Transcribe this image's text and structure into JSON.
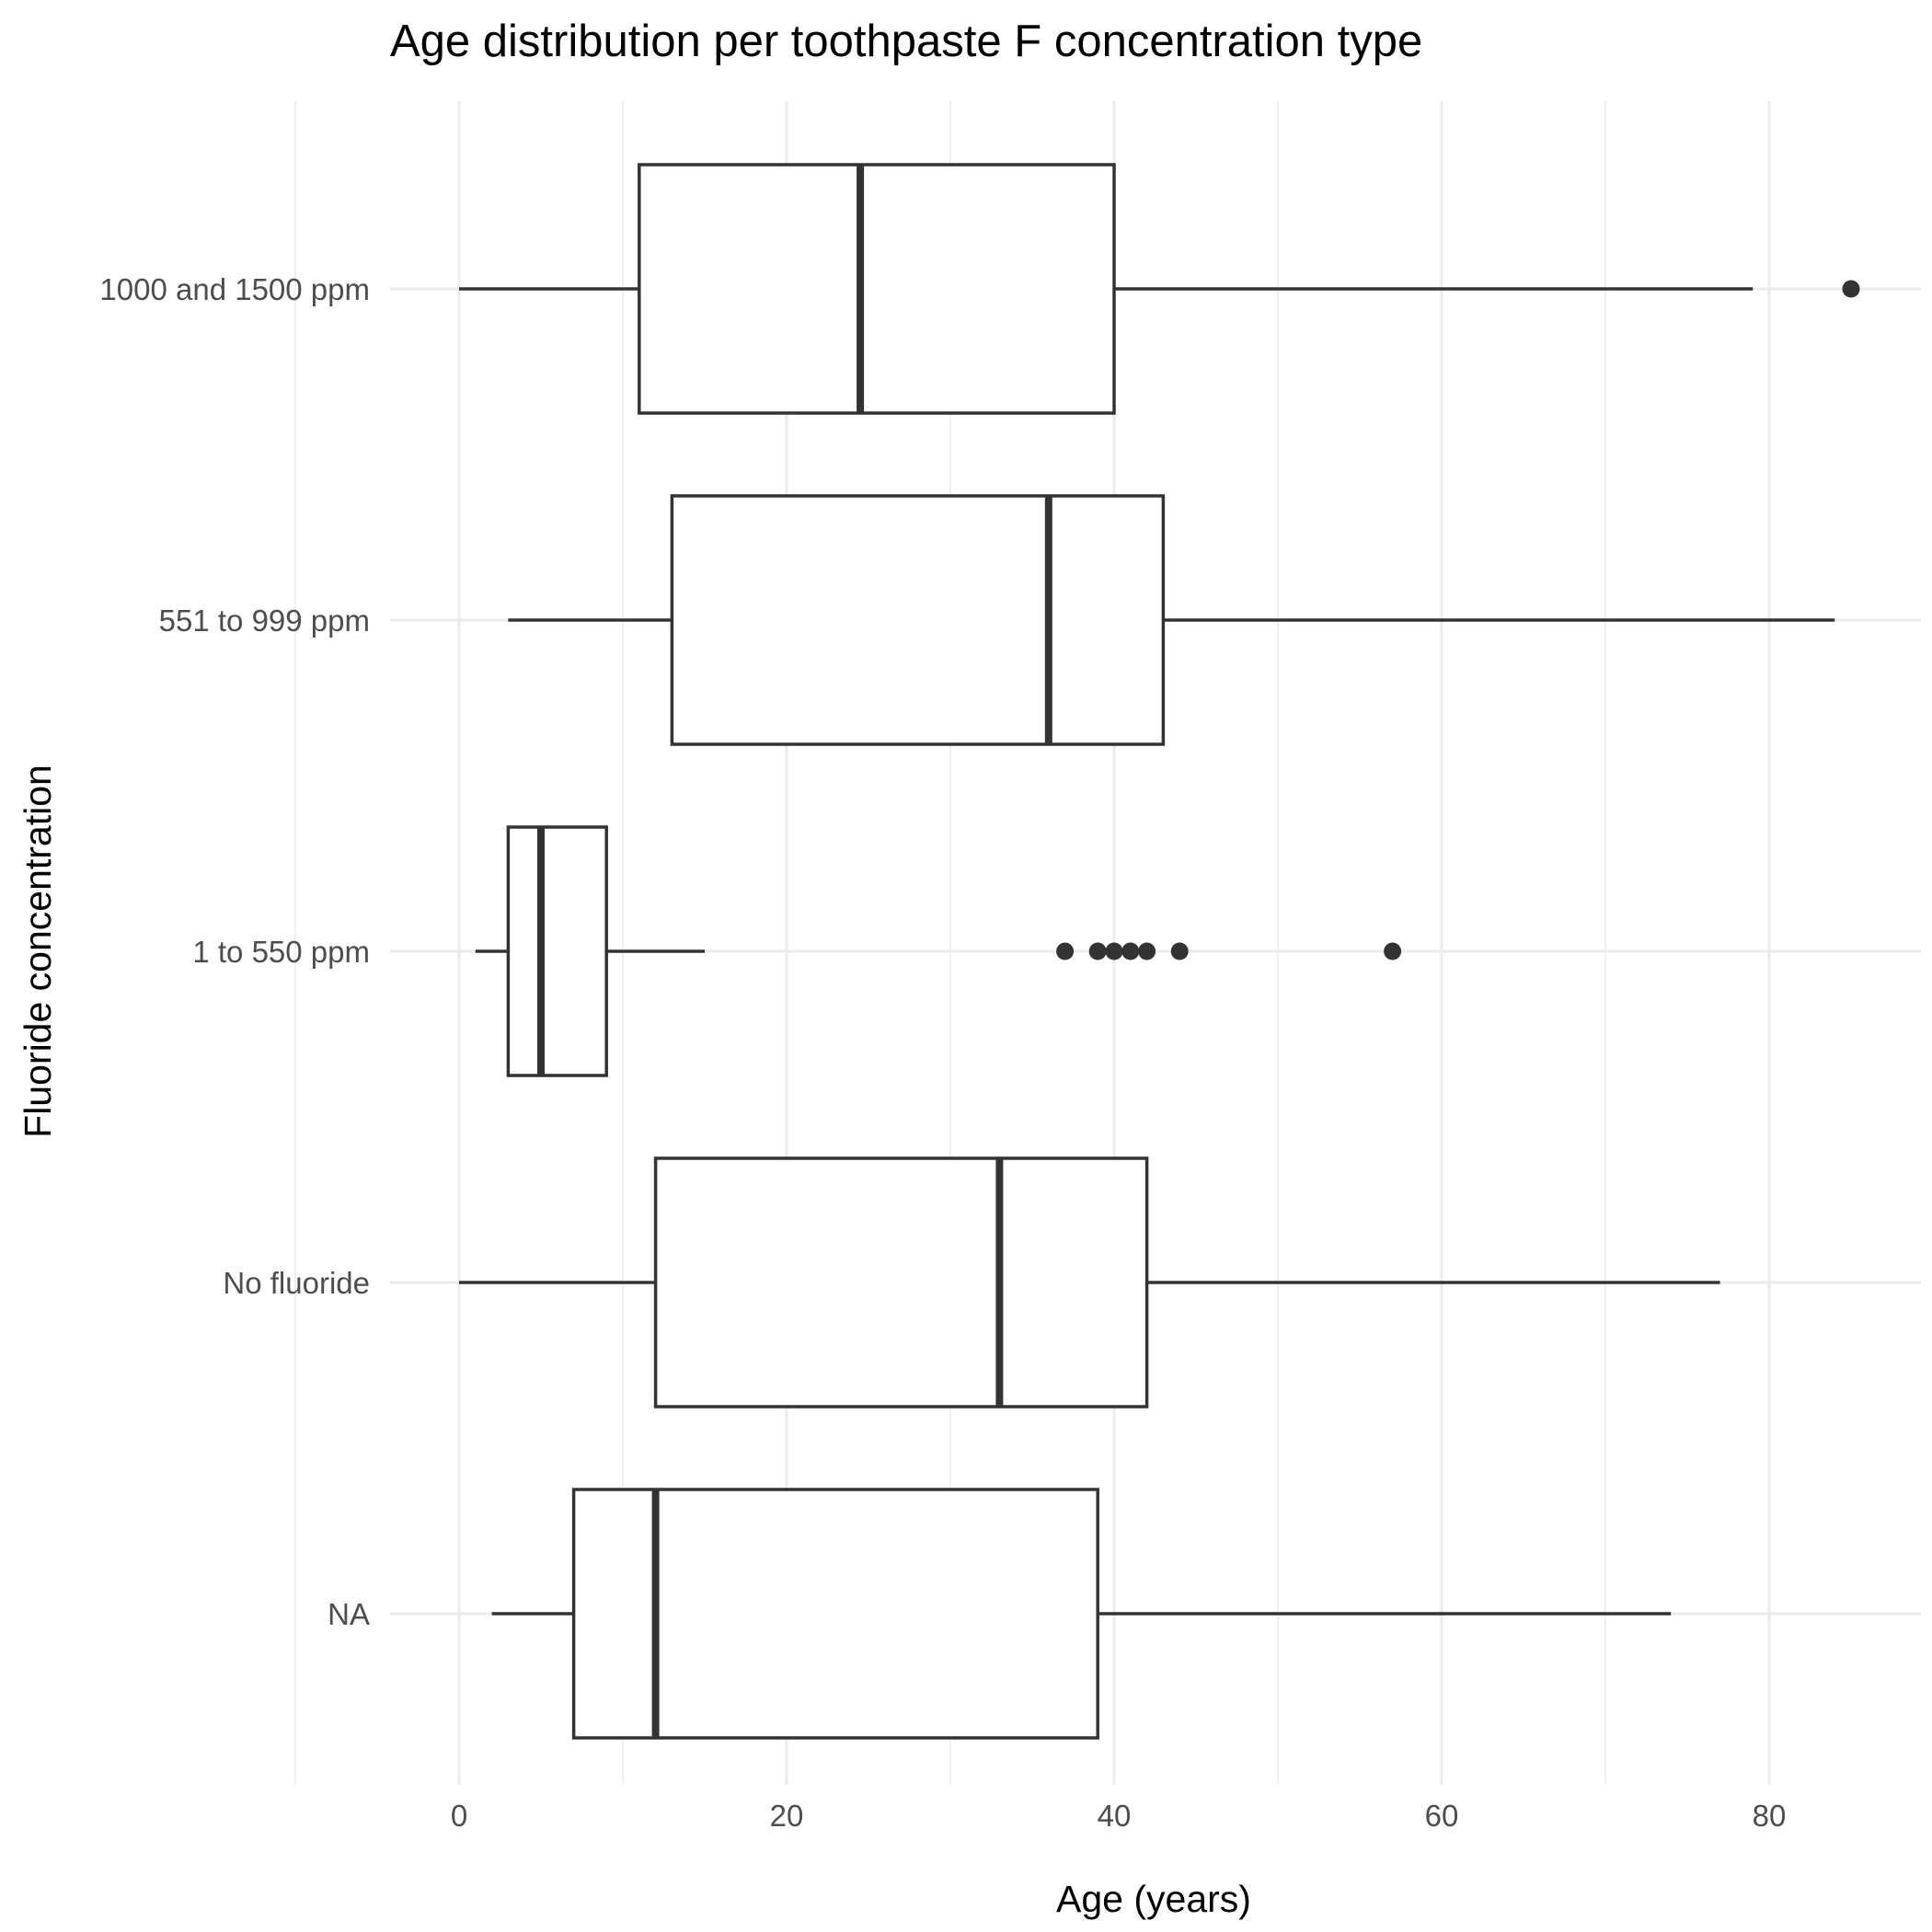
{
  "chart_data": {
    "type": "boxplot",
    "orientation": "horizontal",
    "title": "Age distribution per toothpaste F concentration type",
    "xlabel": "Age (years)",
    "ylabel": "Fluoride concentration",
    "xlim": [
      -4,
      89
    ],
    "xticks": [
      0,
      20,
      40,
      60,
      80
    ],
    "xtick_labels": [
      "0",
      "20",
      "40",
      "60",
      "80"
    ],
    "grid": true,
    "legend": "none",
    "box_color": "#333333",
    "categories": [
      "1000 and 1500 ppm",
      "551 to 999 ppm",
      "1 to 550 ppm",
      "No fluoride",
      "NA"
    ],
    "boxes": [
      {
        "category": "1000 and 1500 ppm",
        "whisker_low": 0,
        "q1": 11,
        "median": 24.5,
        "q3": 40,
        "whisker_high": 79,
        "outliers": [
          85
        ]
      },
      {
        "category": "551 to 999 ppm",
        "whisker_low": 3,
        "q1": 13,
        "median": 36,
        "q3": 43,
        "whisker_high": 84,
        "outliers": []
      },
      {
        "category": "1 to 550 ppm",
        "whisker_low": 1,
        "q1": 3,
        "median": 5,
        "q3": 9,
        "whisker_high": 15,
        "outliers": [
          37,
          39,
          40,
          41,
          42,
          44,
          57
        ]
      },
      {
        "category": "No fluoride",
        "whisker_low": 0,
        "q1": 12,
        "median": 33,
        "q3": 42,
        "whisker_high": 77,
        "outliers": []
      },
      {
        "category": "NA",
        "whisker_low": 2,
        "q1": 7,
        "median": 12,
        "q3": 39,
        "whisker_high": 74,
        "outliers": []
      }
    ]
  }
}
